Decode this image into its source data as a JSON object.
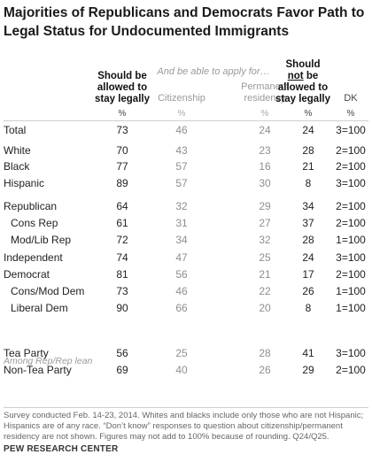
{
  "chart_data": {
    "type": "table",
    "title": "Majorities of Republicans and Democrats Favor Path to Legal Status for Undocumented  Immigrants",
    "column_headers": {
      "legal": "Should be allowed to stay legally",
      "sub_header": "And be able to apply for…",
      "citizenship": "Citizenship",
      "permanent": "Permanent residency",
      "not_before": "Should",
      "not_word": "not",
      "not_after": "be allowed to stay legally",
      "dk": "DK"
    },
    "unit": "%",
    "rows": [
      {
        "label": "Total",
        "indent": false,
        "values": [
          "73",
          "46",
          "24",
          "24",
          "3=100"
        ]
      },
      {
        "label": "White",
        "indent": false,
        "values": [
          "70",
          "43",
          "23",
          "28",
          "2=100"
        ]
      },
      {
        "label": "Black",
        "indent": false,
        "values": [
          "77",
          "57",
          "16",
          "21",
          "2=100"
        ]
      },
      {
        "label": "Hispanic",
        "indent": false,
        "values": [
          "89",
          "57",
          "30",
          "8",
          "3=100"
        ]
      },
      {
        "label": "Republican",
        "indent": false,
        "values": [
          "64",
          "32",
          "29",
          "34",
          "2=100"
        ]
      },
      {
        "label": "Cons Rep",
        "indent": true,
        "values": [
          "61",
          "31",
          "27",
          "37",
          "2=100"
        ]
      },
      {
        "label": "Mod/Lib Rep",
        "indent": true,
        "values": [
          "72",
          "34",
          "32",
          "28",
          "1=100"
        ]
      },
      {
        "label": "Independent",
        "indent": false,
        "values": [
          "74",
          "47",
          "25",
          "24",
          "3=100"
        ]
      },
      {
        "label": "Democrat",
        "indent": false,
        "values": [
          "81",
          "56",
          "21",
          "17",
          "2=100"
        ]
      },
      {
        "label": "Cons/Mod Dem",
        "indent": true,
        "values": [
          "73",
          "46",
          "22",
          "26",
          "1=100"
        ]
      },
      {
        "label": "Liberal Dem",
        "indent": true,
        "values": [
          "90",
          "66",
          "20",
          "8",
          "1=100"
        ]
      },
      {
        "label": "Tea Party",
        "indent": false,
        "values": [
          "56",
          "25",
          "28",
          "41",
          "3=100"
        ]
      },
      {
        "label": "Non-Tea Party",
        "indent": false,
        "values": [
          "69",
          "40",
          "26",
          "29",
          "2=100"
        ]
      }
    ],
    "group_label": "Among Rep/Rep lean",
    "note": "Survey conducted Feb. 14-23, 2014. Whites and blacks include only those who are not Hispanic; Hispanics are of any race.  “Don’t know” responses to question about citizenship/permanent residency are not shown.  Figures may not add to 100% because of rounding. Q24/Q25.",
    "source": "PEW RESEARCH CENTER"
  }
}
